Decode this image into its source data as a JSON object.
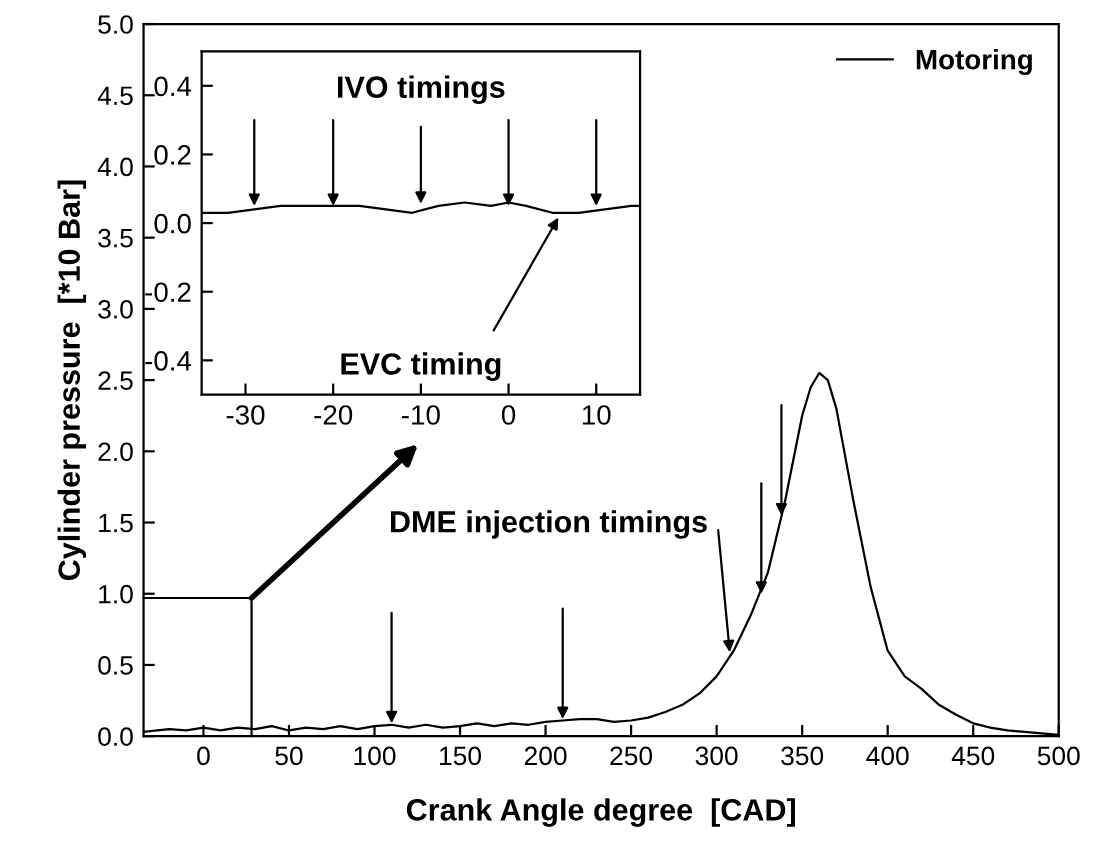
{
  "chart_data": [
    {
      "type": "line",
      "xlabel": "Crank Angle degree  [CAD]",
      "ylabel": "Cylinder pressure  [*10 Bar]",
      "xlim": [
        -35,
        500
      ],
      "ylim": [
        0,
        5
      ],
      "xticks": [
        0,
        50,
        100,
        150,
        200,
        250,
        300,
        350,
        400,
        450,
        500
      ],
      "yticks": [
        {
          "value": 0,
          "label": "0.0"
        },
        0.5,
        {
          "value": 1,
          "label": "1.0"
        },
        1.5,
        {
          "value": 2,
          "label": "2.0"
        },
        2.5,
        {
          "value": 3,
          "label": "3.0"
        },
        3.5,
        {
          "value": 4,
          "label": "4.0"
        },
        4.5,
        {
          "value": 5,
          "label": "5.0"
        }
      ],
      "legend": "top right",
      "grid": false,
      "series": [
        {
          "name": "Motoring",
          "color": "#000000",
          "x": [
            -35,
            -20,
            -10,
            0,
            10,
            20,
            30,
            40,
            50,
            60,
            70,
            80,
            90,
            100,
            110,
            120,
            130,
            140,
            150,
            160,
            170,
            180,
            190,
            200,
            210,
            220,
            230,
            240,
            250,
            260,
            270,
            280,
            290,
            300,
            310,
            320,
            330,
            340,
            350,
            355,
            360,
            365,
            370,
            380,
            390,
            400,
            410,
            420,
            430,
            440,
            450,
            460,
            470,
            480,
            490,
            500
          ],
          "values": [
            0.03,
            0.05,
            0.04,
            0.06,
            0.04,
            0.06,
            0.05,
            0.07,
            0.04,
            0.06,
            0.05,
            0.07,
            0.05,
            0.07,
            0.08,
            0.06,
            0.08,
            0.06,
            0.07,
            0.09,
            0.07,
            0.09,
            0.08,
            0.1,
            0.11,
            0.12,
            0.12,
            0.1,
            0.11,
            0.13,
            0.17,
            0.22,
            0.3,
            0.42,
            0.6,
            0.85,
            1.15,
            1.65,
            2.25,
            2.45,
            2.55,
            2.5,
            2.3,
            1.65,
            1.05,
            0.6,
            0.42,
            0.33,
            0.22,
            0.15,
            0.09,
            0.06,
            0.04,
            0.03,
            0.02,
            0.01
          ]
        }
      ],
      "annotations": [
        {
          "text": "DME injection timings",
          "x": 308,
          "y": 0.55
        }
      ]
    },
    {
      "type": "line",
      "xlim": [
        -35,
        15
      ],
      "ylim": [
        -0.5,
        0.5
      ],
      "xticks": [
        -30,
        -20,
        -10,
        0,
        10
      ],
      "yticks": [
        -0.4,
        -0.2,
        {
          "value": 0,
          "label": "0.0"
        },
        0.2,
        0.4
      ],
      "grid": false,
      "series": [
        {
          "color": "#000000",
          "x": [
            -35,
            -32,
            -29,
            -26,
            -23,
            -20,
            -17,
            -14,
            -11,
            -8,
            -5,
            -2,
            0,
            2,
            5,
            8,
            11,
            14,
            15
          ],
          "values": [
            0.03,
            0.03,
            0.04,
            0.05,
            0.05,
            0.05,
            0.05,
            0.04,
            0.03,
            0.05,
            0.06,
            0.05,
            0.06,
            0.05,
            0.03,
            0.03,
            0.04,
            0.05,
            0.05
          ]
        }
      ],
      "annotations": [
        {
          "text": "IVO timings",
          "x": -10,
          "y": 0.04
        },
        {
          "text": "EVC timing",
          "x": 6,
          "y": 0.03
        }
      ]
    }
  ]
}
